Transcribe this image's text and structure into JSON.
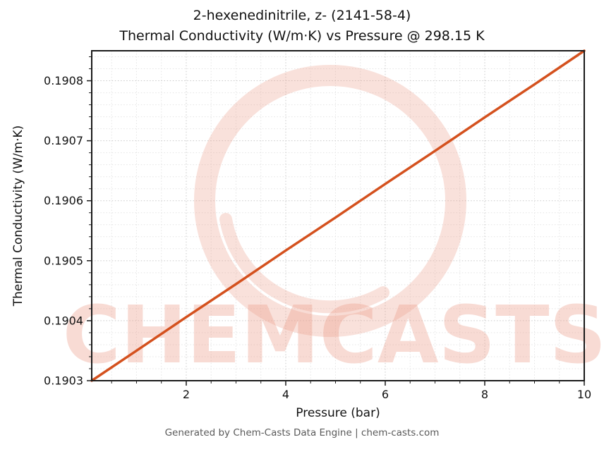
{
  "chart_data": {
    "type": "line",
    "title_lines": [
      "2-hexenedinitrile, z- (2141-58-4)",
      "Thermal Conductivity (W/m·K) vs Pressure @ 298.15 K"
    ],
    "xlabel": "Pressure (bar)",
    "ylabel": "Thermal Conductivity (W/m·K)",
    "x": [
      0.1,
      1,
      2,
      3,
      4,
      5,
      6,
      7,
      8,
      9,
      10
    ],
    "series": [
      {
        "name": "Thermal Conductivity",
        "color": "#d4511e",
        "values": [
          0.1903,
          0.19035,
          0.190406,
          0.190461,
          0.190517,
          0.190572,
          0.190628,
          0.190683,
          0.190739,
          0.190794,
          0.19085
        ]
      }
    ],
    "xlim": [
      0.1,
      10
    ],
    "ylim": [
      0.1903,
      0.19085
    ],
    "xticks": {
      "values": [
        2,
        4,
        6,
        8,
        10
      ],
      "labels": [
        "2",
        "4",
        "6",
        "8",
        "10"
      ]
    },
    "yticks": {
      "values": [
        0.1903,
        0.1904,
        0.1905,
        0.1906,
        0.1907,
        0.1908
      ],
      "labels": [
        "0.1903",
        "0.1904",
        "0.1905",
        "0.1906",
        "0.1907",
        "0.1908"
      ]
    },
    "grid": true,
    "grid_color_major": "#c9c9c9",
    "grid_color_minor": "#e4e4e4",
    "line_width": 3.5,
    "legend": "none"
  },
  "watermark": {
    "text": "CHEMCASTS",
    "color": "#eda28f",
    "text_opacity": 0.38,
    "swirl_opacity": 0.32
  },
  "footer": {
    "text": "Generated by Chem-Casts Data Engine | chem-casts.com"
  }
}
